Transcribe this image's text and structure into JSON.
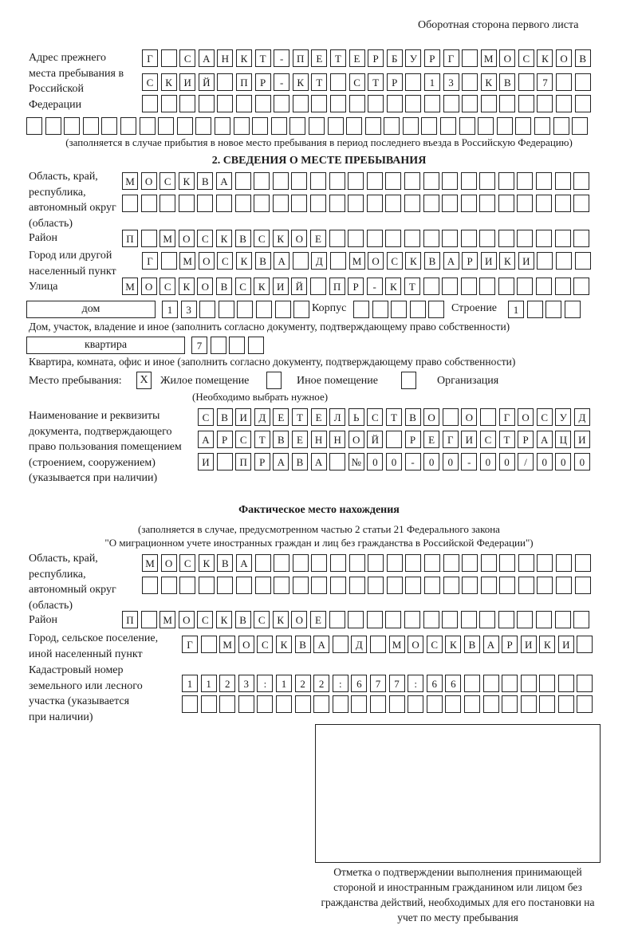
{
  "header": {
    "page_side": "Оборотная сторона первого листа"
  },
  "previous_address": {
    "label": "Адрес прежнего места пребывания в Российской Федерации",
    "rows": [
      "Г САНКТ-ПЕТЕРБУРГ МОСКОВ",
      "СКИЙ ПР-КТ СТР 13 КВ 7  ",
      "                        ",
      "                              "
    ],
    "note": "(заполняется в случае прибытия в новое место пребывания в период последнего въезда в Российскую Федерацию)"
  },
  "section2": {
    "title": "2. СВЕДЕНИЯ О МЕСТЕ ПРЕБЫВАНИЯ",
    "region_label": "Область, край, республика, автономный округ (область)",
    "region_rows": [
      "МОСКВА                   ",
      "                         "
    ],
    "district_label": "Район",
    "district_row": "П МОСКВСКОЕ              ",
    "city_label": "Город или другой населенный пункт",
    "city_row": "Г МОСКВА Д МОСКВАРИКИ   ",
    "street_label": "Улица",
    "street_row": "МОСКОВСКИЙ ПР-КТ         ",
    "house_type": "дом",
    "house_row": "13      ",
    "korpus_label": "Корпус",
    "korpus_row": "     ",
    "stroenie_label": "Строение",
    "stroenie_row": "1   ",
    "house_note": "Дом, участок, владение и иное (заполнить согласно документу, подтверждающему право собственности)",
    "flat_type": "квартира",
    "flat_row": "7   ",
    "flat_note": "Квартира, комната, офис и иное (заполнить согласно документу, подтверждающему право собственности)",
    "stay_place_label": "Место пребывания:",
    "options": [
      {
        "label": "Жилое помещение",
        "checked": true,
        "mark": "X"
      },
      {
        "label": "Иное помещение",
        "checked": false
      },
      {
        "label": "Организация",
        "checked": false
      }
    ],
    "options_note": "(Необходимо выбрать нужное)",
    "doc_label": "Наименование и реквизиты документа, подтверждающего право пользования помещением (строением, сооружением) (указывается при наличии)",
    "doc_rows": [
      "СВИДЕТЕЛЬСТВО О ГОСУД",
      "АРСТВЕННОЙ РЕГИСТРАЦИ",
      "И ПРАВА №00-00-00/000"
    ]
  },
  "actual": {
    "title": "Фактическое место нахождения",
    "note_line1": "(заполняется в случае, предусмотренном частью 2 статьи 21 Федерального закона",
    "note_line2": "\"О миграционном учете иностранных граждан и лиц без гражданства в Российской Федерации\")",
    "region_label": "Область, край, республика, автономный округ (область)",
    "region_rows": [
      "МОСКВА                  ",
      "                        "
    ],
    "district_label": "Район",
    "district_row": "П МОСКВСКОЕ              ",
    "city_label": "Город, сельское поселение, иной населенный пункт",
    "city_row": "Г МОСКВА Д МОСКВАРИКИ ",
    "cadastre_label": "Кадастровый номер земельного или лесного участка (указывается при наличии)",
    "cadastre_rows": [
      "1123:122:677:66       ",
      "                      "
    ]
  },
  "confirmation": {
    "caption": "Отметка о подтверждении выполнения принимающей стороной и иностранным гражданином или лицом без гражданства действий, необходимых для его постановки на учет по месту пребывания"
  }
}
